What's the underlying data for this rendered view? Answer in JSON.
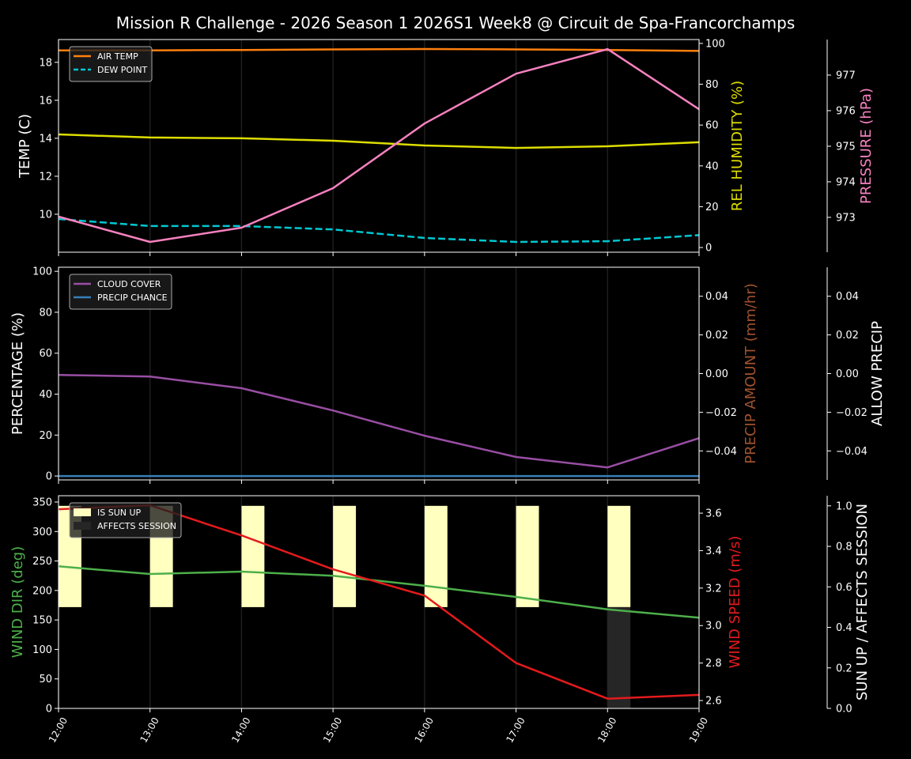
{
  "chart_data": {
    "type": "line",
    "title": "Mission R Challenge - 2026 Season 1 2026S1 Week8 @ Circuit de Spa-Francorchamps",
    "x_labels": [
      "12:00",
      "13:00",
      "14:00",
      "15:00",
      "16:00",
      "17:00",
      "18:00",
      "19:00"
    ],
    "grid": "vertical at hours",
    "panels": [
      {
        "left_axis": {
          "label": "TEMP (C)",
          "color": "#ffffff",
          "ylim": [
            8.0,
            19.2
          ],
          "ticks": [
            10,
            12,
            14,
            16,
            18
          ],
          "tick_labels": [
            "10",
            "12",
            "14",
            "16",
            "18"
          ]
        },
        "right_axis": {
          "label": "REL HUMIDITY (%)",
          "color": "#dddd00",
          "ylim": [
            -2.3,
            101.9
          ],
          "ticks": [
            0,
            20,
            40,
            60,
            80,
            100
          ],
          "tick_labels": [
            "0",
            "20",
            "40",
            "60",
            "80",
            "100"
          ]
        },
        "right2_axis": {
          "label": "PRESSURE (hPa)",
          "color": "#f781bf",
          "ylim": [
            972.02,
            978.0
          ],
          "ticks": [
            973,
            974,
            975,
            976,
            977
          ],
          "tick_labels": [
            "973",
            "974",
            "975",
            "976",
            "977"
          ]
        },
        "legend_placement": "top-left",
        "series": [
          {
            "name": "AIR TEMP",
            "axis": "left",
            "color": "#ff7f0e",
            "dash": false,
            "values": [
              18.63,
              18.63,
              18.65,
              18.68,
              18.7,
              18.68,
              18.65,
              18.6
            ]
          },
          {
            "name": "DEW POINT",
            "axis": "left",
            "color": "#00c8d2",
            "dash": true,
            "values": [
              9.75,
              9.38,
              9.38,
              9.2,
              8.75,
              8.54,
              8.58,
              8.9
            ]
          },
          {
            "axis": "right",
            "color": "#dddd00",
            "dash": false,
            "values": [
              55.4,
              53.9,
              53.5,
              52.3,
              50.0,
              48.8,
              49.6,
              51.6
            ]
          },
          {
            "axis": "right2",
            "color": "#f781bf",
            "dash": false,
            "values": [
              973.02,
              972.31,
              972.71,
              973.82,
              975.64,
              977.04,
              977.73,
              976.04
            ]
          }
        ]
      },
      {
        "left_axis": {
          "label": "PERCENTAGE (%)",
          "color": "#ffffff",
          "ylim": [
            -1.9,
            102
          ],
          "ticks": [
            0,
            20,
            40,
            60,
            80,
            100
          ],
          "tick_labels": [
            "0",
            "20",
            "40",
            "60",
            "80",
            "100"
          ]
        },
        "right_axis": {
          "label": "PRECIP AMOUNT (mm/hr)",
          "color": "#a0522d",
          "ylim": [
            -0.055,
            0.055
          ],
          "ticks": [
            -0.04,
            -0.02,
            0,
            0.02,
            0.04
          ],
          "tick_labels": [
            "−0.04",
            "−0.02",
            "0.00",
            "0.02",
            "0.04"
          ]
        },
        "right2_axis": {
          "label": "ALLOW PRECIP",
          "color": "#ffffff",
          "ylim": [
            -0.055,
            0.055
          ],
          "ticks": [
            -0.04,
            -0.02,
            0,
            0.02,
            0.04
          ],
          "tick_labels": [
            "−0.04",
            "−0.02",
            "0.00",
            "0.02",
            "0.04"
          ]
        },
        "legend_placement": "top-left",
        "series": [
          {
            "name": "CLOUD COVER",
            "axis": "left",
            "color": "#984ea3",
            "dash": false,
            "values": [
              49.4,
              48.6,
              42.9,
              32.0,
              19.7,
              9.3,
              4.2,
              18.5
            ]
          },
          {
            "name": "PRECIP CHANCE",
            "axis": "left",
            "color": "#377eb8",
            "dash": false,
            "values": [
              0,
              0,
              0,
              0,
              0,
              0,
              0,
              0
            ]
          }
        ]
      },
      {
        "left_axis": {
          "label": "WIND DIR (deg)",
          "color": "#4daf4a",
          "ylim": [
            0,
            360.7
          ],
          "ticks": [
            0,
            50,
            100,
            150,
            200,
            250,
            300,
            350
          ],
          "tick_labels": [
            "0",
            "50",
            "100",
            "150",
            "200",
            "250",
            "300",
            "350"
          ]
        },
        "right_axis": {
          "label": "WIND SPEED (m/s)",
          "color": "#e41a1c",
          "ylim": [
            2.558,
            3.693
          ],
          "ticks": [
            2.6,
            2.8,
            3.0,
            3.2,
            3.4,
            3.6
          ],
          "tick_labels": [
            "2.6",
            "2.8",
            "3.0",
            "3.2",
            "3.4",
            "3.6"
          ]
        },
        "right2_axis": {
          "label": "SUN UP / AFFECTS SESSION",
          "color": "#ffffff",
          "ylim": [
            0,
            1.05
          ],
          "ticks": [
            0,
            0.2,
            0.4,
            0.6,
            0.8,
            1.0
          ],
          "tick_labels": [
            "0.0",
            "0.2",
            "0.4",
            "0.6",
            "0.8",
            "1.0"
          ]
        },
        "legend_placement": "top-left",
        "series": [
          {
            "name": "IS SUN UP",
            "axis": "right2",
            "kind": "bar",
            "color": "#ffffc0",
            "values": [
              1,
              1,
              1,
              1,
              1,
              1,
              1,
              0
            ]
          },
          {
            "name": "AFFECTS SESSION",
            "axis": "right2",
            "kind": "bar",
            "color": "#262626",
            "values": [
              0,
              0,
              0,
              0,
              0,
              0,
              1,
              0
            ]
          },
          {
            "axis": "left",
            "color": "#4daf4a",
            "dash": false,
            "values": [
              241,
              228,
              232,
              225,
              208,
              189,
              168,
              154
            ]
          },
          {
            "axis": "right",
            "color": "#e41a1c",
            "dash": false,
            "values": [
              3.621,
              3.642,
              3.481,
              3.3,
              3.16,
              2.8,
              2.61,
              2.63
            ]
          }
        ]
      }
    ]
  }
}
